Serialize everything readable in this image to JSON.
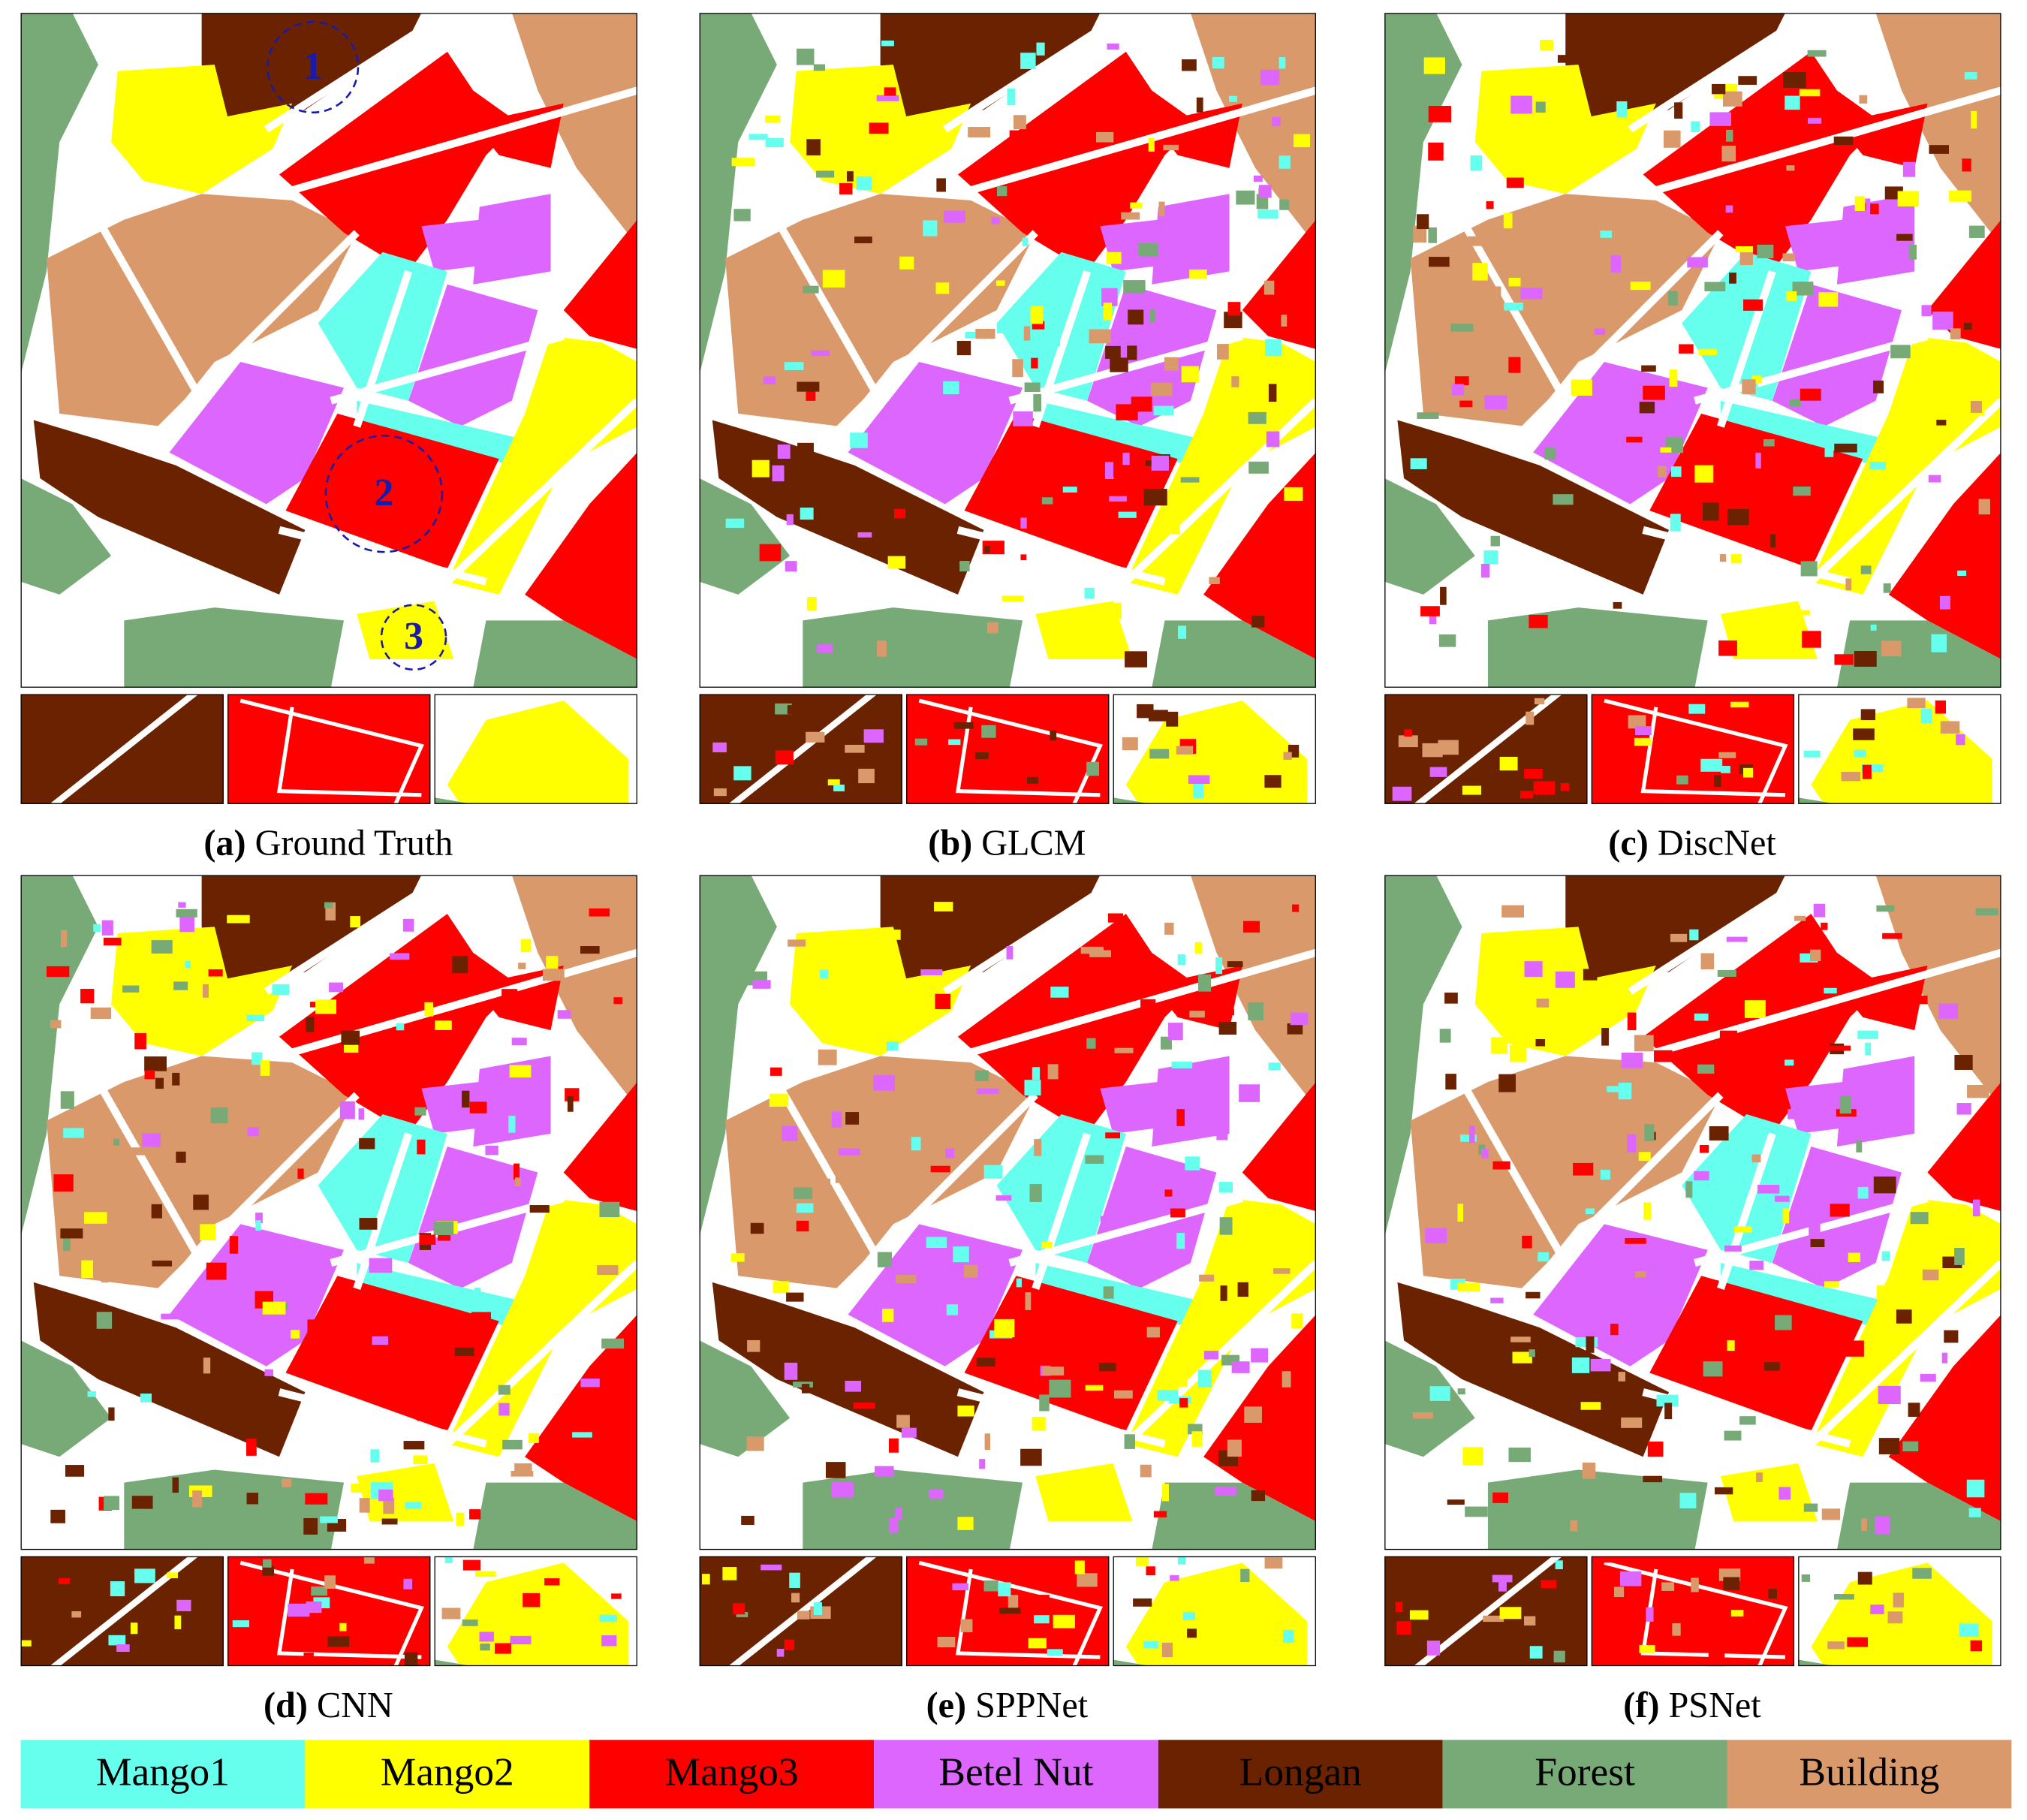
{
  "panels": [
    {
      "label": "(a)",
      "name": "Ground Truth"
    },
    {
      "label": "(b)",
      "name": "GLCM"
    },
    {
      "label": "(c)",
      "name": "DiscNet"
    },
    {
      "label": "(d)",
      "name": "CNN"
    },
    {
      "label": "(e)",
      "name": "SPPNet"
    },
    {
      "label": "(f)",
      "name": "PSNet"
    }
  ],
  "annotations": [
    "1",
    "2",
    "3"
  ],
  "legend": [
    {
      "name": "Mango1",
      "color": "#66ffee"
    },
    {
      "name": "Mango2",
      "color": "#ffff00"
    },
    {
      "name": "Mango3",
      "color": "#ff0000"
    },
    {
      "name": "Betel Nut",
      "color": "#dd66ff"
    },
    {
      "name": "Longan",
      "color": "#6b2200"
    },
    {
      "name": "Forest",
      "color": "#77aa77"
    },
    {
      "name": "Building",
      "color": "#d9996a"
    }
  ]
}
